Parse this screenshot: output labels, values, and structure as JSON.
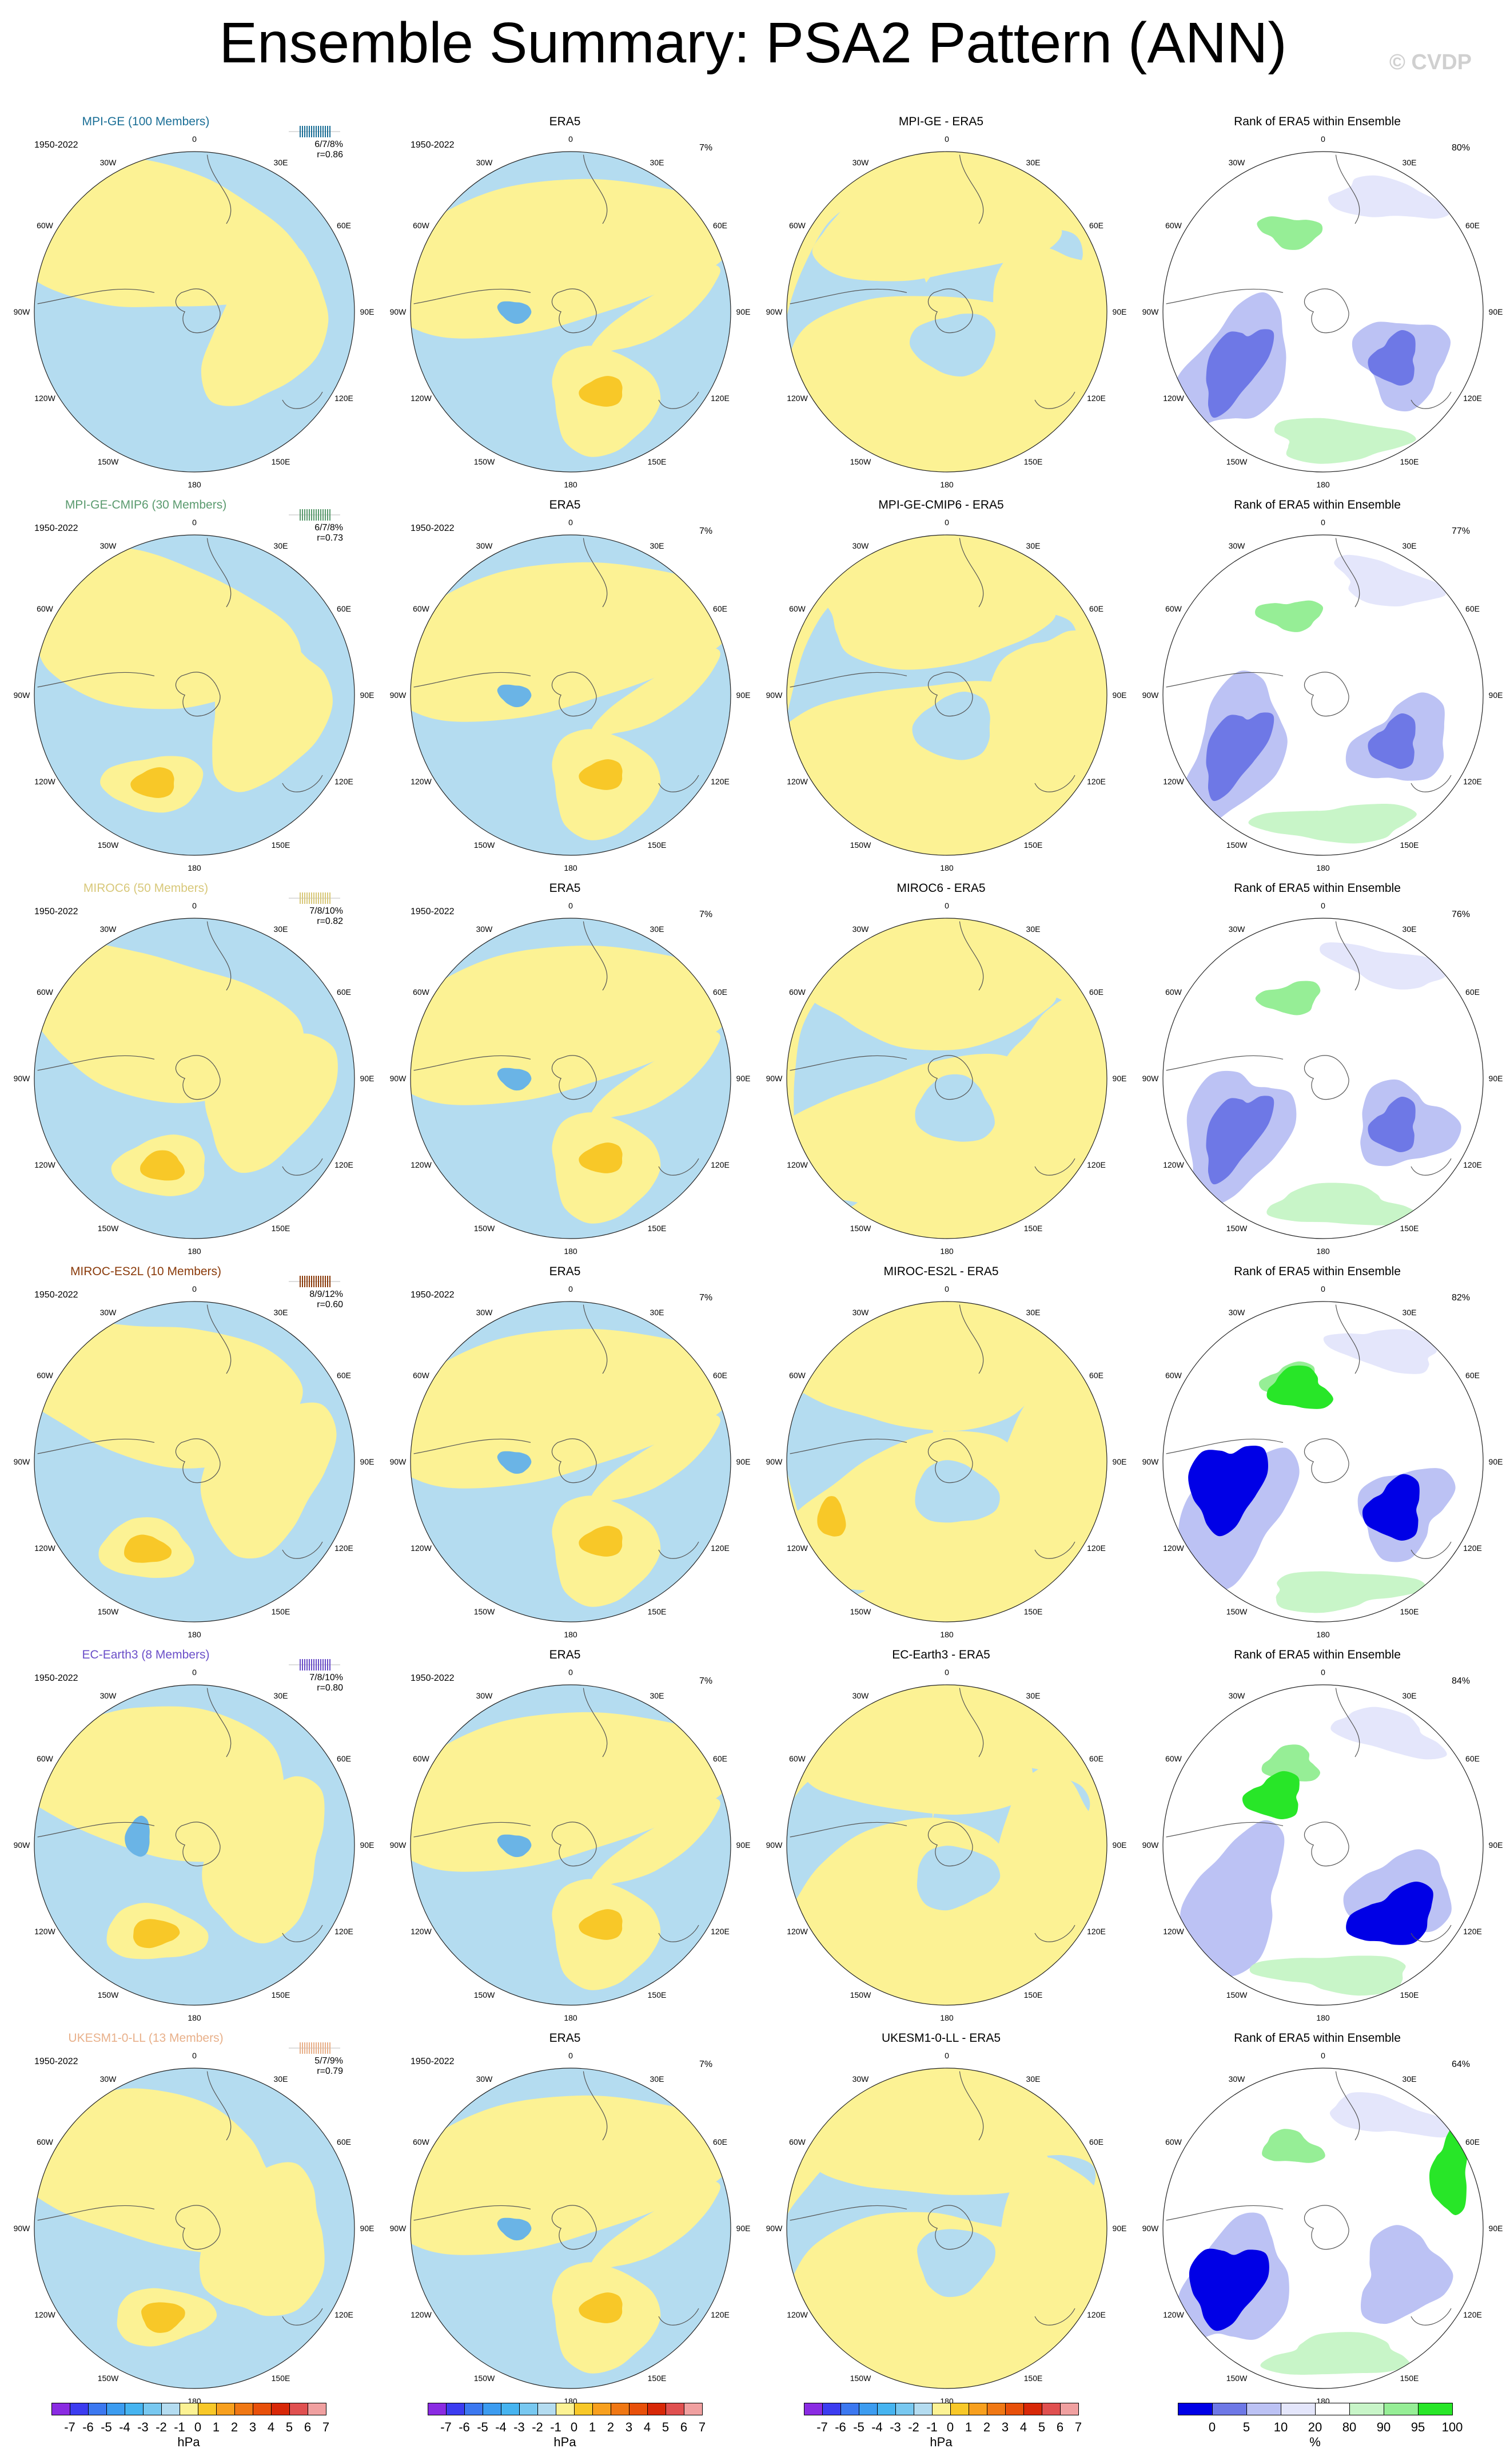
{
  "title": "Ensemble Summary: PSA2 Pattern (ANN)",
  "copyright": "© CVDP",
  "period": "1950-2022",
  "lon_labels": [
    "0",
    "30E",
    "60E",
    "90E",
    "120E",
    "150E",
    "180",
    "150W",
    "120W",
    "90W",
    "60W",
    "30W"
  ],
  "colors": {
    "neg_light": "#b4dcf0",
    "neg_mid": "#6ab4e6",
    "pos_light": "#fcf294",
    "pos_mid": "#f8c828",
    "rank_green_light": "#c8f5c8",
    "rank_green_mid": "#96ee96",
    "rank_green_dark": "#28e628",
    "rank_blue_pale": "#e4e6fb",
    "rank_blue_light": "#bcc2f4",
    "rank_blue_mid": "#6e78e6",
    "rank_blue_dark": "#0000e6"
  },
  "rows": [
    {
      "model_title": "MPI-GE (100 Members)",
      "model_color": "#1a6e96",
      "stats_line1": "6/7/8%",
      "stats_line2": "r=0.86",
      "era_title": "ERA5",
      "era_pct": "7%",
      "diff_title": "MPI-GE - ERA5",
      "rank_title": "Rank of ERA5 within Ensemble",
      "rank_pct": "80%"
    },
    {
      "model_title": "MPI-GE-CMIP6 (30 Members)",
      "model_color": "#5a9a6e",
      "stats_line1": "6/7/8%",
      "stats_line2": "r=0.73",
      "era_title": "ERA5",
      "era_pct": "7%",
      "diff_title": "MPI-GE-CMIP6 - ERA5",
      "rank_title": "Rank of ERA5 within Ensemble",
      "rank_pct": "77%"
    },
    {
      "model_title": "MIROC6 (50 Members)",
      "model_color": "#d8c87a",
      "stats_line1": "7/8/10%",
      "stats_line2": "r=0.82",
      "era_title": "ERA5",
      "era_pct": "7%",
      "diff_title": "MIROC6 - ERA5",
      "rank_title": "Rank of ERA5 within Ensemble",
      "rank_pct": "76%"
    },
    {
      "model_title": "MIROC-ES2L (10 Members)",
      "model_color": "#8a3a0a",
      "stats_line1": "8/9/12%",
      "stats_line2": "r=0.60",
      "era_title": "ERA5",
      "era_pct": "7%",
      "diff_title": "MIROC-ES2L - ERA5",
      "rank_title": "Rank of ERA5 within Ensemble",
      "rank_pct": "82%"
    },
    {
      "model_title": "EC-Earth3 (8 Members)",
      "model_color": "#6a4ec8",
      "stats_line1": "7/8/10%",
      "stats_line2": "r=0.80",
      "era_title": "ERA5",
      "era_pct": "7%",
      "diff_title": "EC-Earth3 - ERA5",
      "rank_title": "Rank of ERA5 within Ensemble",
      "rank_pct": "84%"
    },
    {
      "model_title": "UKESM1-0-LL (13 Members)",
      "model_color": "#e8b08a",
      "stats_line1": "5/7/9%",
      "stats_line2": "r=0.79",
      "era_title": "ERA5",
      "era_pct": "7%",
      "diff_title": "UKESM1-0-LL - ERA5",
      "rank_title": "Rank of ERA5 within Ensemble",
      "rank_pct": "64%"
    }
  ],
  "colorbar_hpa": {
    "labels": [
      "-7",
      "-6",
      "-5",
      "-4",
      "-3",
      "-2",
      "-1",
      "0",
      "1",
      "2",
      "3",
      "4",
      "5",
      "6",
      "7"
    ],
    "colors": [
      "#8a2be2",
      "#3c3cf0",
      "#3c78f0",
      "#3c9cf0",
      "#46b4f0",
      "#78c8f0",
      "#b4dcf0",
      "#fcf294",
      "#f8c828",
      "#f8a01e",
      "#f07814",
      "#e8500a",
      "#d82808",
      "#e05050",
      "#f0a0a0"
    ],
    "unit": "hPa"
  },
  "colorbar_rank": {
    "labels": [
      "0",
      "5",
      "10",
      "20",
      "80",
      "90",
      "95",
      "100"
    ],
    "colors": [
      "#0000e6",
      "#6e78e6",
      "#bcc2f4",
      "#e4e6fb",
      "#ffffff",
      "#c8f5c8",
      "#96ee96",
      "#28e628"
    ],
    "unit": "%"
  }
}
